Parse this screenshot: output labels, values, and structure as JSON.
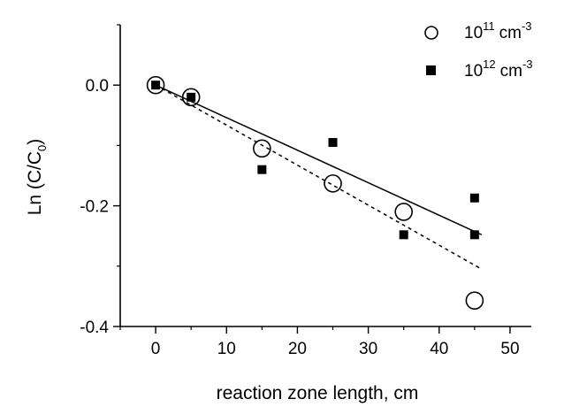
{
  "chart_data": {
    "type": "scatter",
    "title": "",
    "xlabel": "reaction zone length, cm",
    "ylabel": "Ln (C/C",
    "ylabel_subscript": "0",
    "ylabel_suffix": ")",
    "xlim": [
      -5,
      53
    ],
    "ylim": [
      -0.4,
      0.1
    ],
    "x_ticks": [
      0,
      10,
      20,
      30,
      40,
      50
    ],
    "x_tick_labels": [
      "0",
      "10",
      "20",
      "30",
      "40",
      "50"
    ],
    "y_ticks": [
      0.0,
      -0.2,
      -0.4
    ],
    "y_tick_labels": [
      "0.0",
      "-0.2",
      "-0.4"
    ],
    "grid": false,
    "legend_position": "top-right",
    "series": [
      {
        "name_base": "10",
        "name_exp": "11",
        "name_unit": "cm",
        "name_unit_exp": "-3",
        "marker": "open-circle",
        "points": [
          [
            0,
            0.0
          ],
          [
            5,
            -0.02
          ],
          [
            15,
            -0.105
          ],
          [
            25,
            -0.163
          ],
          [
            35,
            -0.21
          ],
          [
            45,
            -0.357
          ]
        ],
        "fit_line": {
          "style": "solid",
          "x": [
            0,
            46
          ],
          "y": [
            0.0,
            -0.248
          ]
        }
      },
      {
        "name_base": "10",
        "name_exp": "12",
        "name_unit": "cm",
        "name_unit_exp": "-3",
        "marker": "filled-square",
        "points": [
          [
            0,
            0.0
          ],
          [
            5,
            -0.02
          ],
          [
            15,
            -0.14
          ],
          [
            25,
            -0.095
          ],
          [
            35,
            -0.248
          ],
          [
            45,
            -0.248
          ],
          [
            45,
            -0.187
          ]
        ],
        "fit_line": {
          "style": "dashed",
          "x": [
            0,
            46
          ],
          "y": [
            0.0,
            -0.305
          ]
        }
      }
    ]
  }
}
